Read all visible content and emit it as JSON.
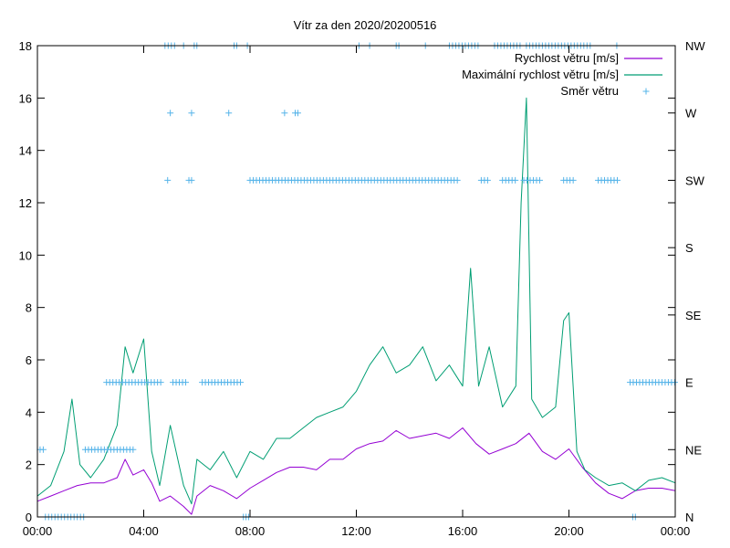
{
  "chart_data": {
    "type": "line",
    "title": "Vítr za den 2020/20200516",
    "x_ticks": [
      "00:00",
      "04:00",
      "08:00",
      "12:00",
      "16:00",
      "20:00",
      "00:00"
    ],
    "xlim_hours": [
      0,
      24
    ],
    "y_ticks": [
      "0",
      "2",
      "4",
      "6",
      "8",
      "10",
      "12",
      "14",
      "16",
      "18"
    ],
    "ylim": [
      0,
      18
    ],
    "y2_ticks": [
      "N",
      "NE",
      "E",
      "SE",
      "S",
      "SW",
      "W",
      "NW"
    ],
    "y2lim": [
      0,
      7
    ],
    "legend_position": "top-right",
    "grid": false,
    "series": [
      {
        "name": "Rychlost větru [m/s]",
        "axis": "y",
        "style": "line",
        "color": "#9400d3",
        "x": [
          0,
          0.5,
          1,
          1.5,
          2,
          2.5,
          3,
          3.3,
          3.6,
          4,
          4.3,
          4.6,
          5,
          5.5,
          5.8,
          6,
          6.5,
          7,
          7.5,
          8,
          8.5,
          9,
          9.5,
          10,
          10.5,
          11,
          11.5,
          12,
          12.5,
          13,
          13.5,
          14,
          14.5,
          15,
          15.5,
          16,
          16.5,
          17,
          17.5,
          18,
          18.5,
          19,
          19.5,
          20,
          20.5,
          21,
          21.5,
          22,
          22.5,
          23,
          23.5,
          24
        ],
        "values": [
          0.6,
          0.8,
          1.0,
          1.2,
          1.3,
          1.3,
          1.5,
          2.2,
          1.6,
          1.8,
          1.3,
          0.6,
          0.8,
          0.4,
          0.1,
          0.8,
          1.2,
          1.0,
          0.7,
          1.1,
          1.4,
          1.7,
          1.9,
          1.9,
          1.8,
          2.2,
          2.2,
          2.6,
          2.8,
          2.9,
          3.3,
          3.0,
          3.1,
          3.2,
          3.0,
          3.4,
          2.8,
          2.4,
          2.6,
          2.8,
          3.2,
          2.5,
          2.2,
          2.6,
          1.9,
          1.3,
          0.9,
          0.7,
          1.0,
          1.1,
          1.1,
          1.0
        ]
      },
      {
        "name": "Maximální rychlost větru [m/s]",
        "axis": "y",
        "style": "line",
        "color": "#009e73",
        "x": [
          0,
          0.5,
          1,
          1.3,
          1.6,
          2,
          2.5,
          3,
          3.3,
          3.6,
          4,
          4.3,
          4.6,
          5,
          5.5,
          5.8,
          6,
          6.5,
          7,
          7.5,
          8,
          8.5,
          9,
          9.5,
          10,
          10.5,
          11,
          11.5,
          12,
          12.5,
          13,
          13.5,
          14,
          14.5,
          15,
          15.5,
          16,
          16.3,
          16.6,
          17,
          17.5,
          18,
          18.2,
          18.4,
          18.6,
          19,
          19.5,
          19.8,
          20,
          20.3,
          20.6,
          21,
          21.5,
          22,
          22.5,
          23,
          23.5,
          24
        ],
        "values": [
          0.8,
          1.2,
          2.5,
          4.5,
          2.0,
          1.5,
          2.2,
          3.5,
          6.5,
          5.5,
          6.8,
          2.5,
          1.2,
          3.5,
          1.2,
          0.5,
          2.2,
          1.8,
          2.5,
          1.5,
          2.5,
          2.2,
          3.0,
          3.0,
          3.4,
          3.8,
          4.0,
          4.2,
          4.8,
          5.8,
          6.5,
          5.5,
          5.8,
          6.5,
          5.2,
          5.8,
          5.0,
          9.5,
          5.0,
          6.5,
          4.2,
          5.0,
          12.0,
          16.0,
          4.5,
          3.8,
          4.2,
          7.5,
          7.8,
          2.5,
          1.8,
          1.5,
          1.2,
          1.3,
          1.0,
          1.4,
          1.5,
          1.3
        ]
      },
      {
        "name": "Směr větru",
        "axis": "y2",
        "style": "points",
        "color": "#56b4e9",
        "point_groups": [
          {
            "dir": 0,
            "from": 0.3,
            "to": 1.8,
            "step": 0.12
          },
          {
            "dir": 0,
            "from": 7.75,
            "to": 7.95,
            "step": 0.1
          },
          {
            "dir": 0,
            "from": 22.4,
            "to": 22.5,
            "step": 0.1
          },
          {
            "dir": 1,
            "from": 0.1,
            "to": 0.3,
            "step": 0.12
          },
          {
            "dir": 1,
            "from": 1.8,
            "to": 3.6,
            "step": 0.12
          },
          {
            "dir": 2,
            "from": 2.6,
            "to": 4.7,
            "step": 0.12
          },
          {
            "dir": 2,
            "from": 5.1,
            "to": 5.6,
            "step": 0.12
          },
          {
            "dir": 2,
            "from": 6.2,
            "to": 7.7,
            "step": 0.12
          },
          {
            "dir": 2,
            "from": 22.3,
            "to": 24.0,
            "step": 0.12
          },
          {
            "dir": 5,
            "from": 4.9,
            "to": 4.9,
            "step": 0.1
          },
          {
            "dir": 5,
            "from": 5.7,
            "to": 5.8,
            "step": 0.1
          },
          {
            "dir": 5,
            "from": 8.0,
            "to": 15.8,
            "step": 0.12
          },
          {
            "dir": 5,
            "from": 16.7,
            "to": 17.0,
            "step": 0.12
          },
          {
            "dir": 5,
            "from": 17.5,
            "to": 18.0,
            "step": 0.12
          },
          {
            "dir": 5,
            "from": 18.3,
            "to": 18.9,
            "step": 0.12
          },
          {
            "dir": 5,
            "from": 19.8,
            "to": 20.2,
            "step": 0.12
          },
          {
            "dir": 5,
            "from": 21.1,
            "to": 21.9,
            "step": 0.12
          },
          {
            "dir": 6,
            "from": 5.0,
            "to": 5.0,
            "step": 0.1
          },
          {
            "dir": 6,
            "from": 5.8,
            "to": 5.8,
            "step": 0.1
          },
          {
            "dir": 6,
            "from": 7.2,
            "to": 7.2,
            "step": 0.1
          },
          {
            "dir": 6,
            "from": 9.3,
            "to": 9.3,
            "step": 0.1
          },
          {
            "dir": 6,
            "from": 9.7,
            "to": 9.8,
            "step": 0.1
          },
          {
            "dir": 7,
            "from": 4.8,
            "to": 5.2,
            "step": 0.12
          },
          {
            "dir": 7,
            "from": 5.5,
            "to": 5.5,
            "step": 0.1
          },
          {
            "dir": 7,
            "from": 5.9,
            "to": 6.0,
            "step": 0.1
          },
          {
            "dir": 7,
            "from": 7.4,
            "to": 7.5,
            "step": 0.1
          },
          {
            "dir": 7,
            "from": 7.9,
            "to": 7.9,
            "step": 0.1
          },
          {
            "dir": 7,
            "from": 12.1,
            "to": 12.1,
            "step": 0.1
          },
          {
            "dir": 7,
            "from": 12.5,
            "to": 12.5,
            "step": 0.1
          },
          {
            "dir": 7,
            "from": 13.5,
            "to": 13.6,
            "step": 0.1
          },
          {
            "dir": 7,
            "from": 14.6,
            "to": 14.6,
            "step": 0.1
          },
          {
            "dir": 7,
            "from": 15.5,
            "to": 16.6,
            "step": 0.12
          },
          {
            "dir": 7,
            "from": 17.2,
            "to": 18.2,
            "step": 0.12
          },
          {
            "dir": 7,
            "from": 18.4,
            "to": 20.9,
            "step": 0.12
          },
          {
            "dir": 7,
            "from": 21.8,
            "to": 21.8,
            "step": 0.1
          }
        ]
      }
    ]
  }
}
